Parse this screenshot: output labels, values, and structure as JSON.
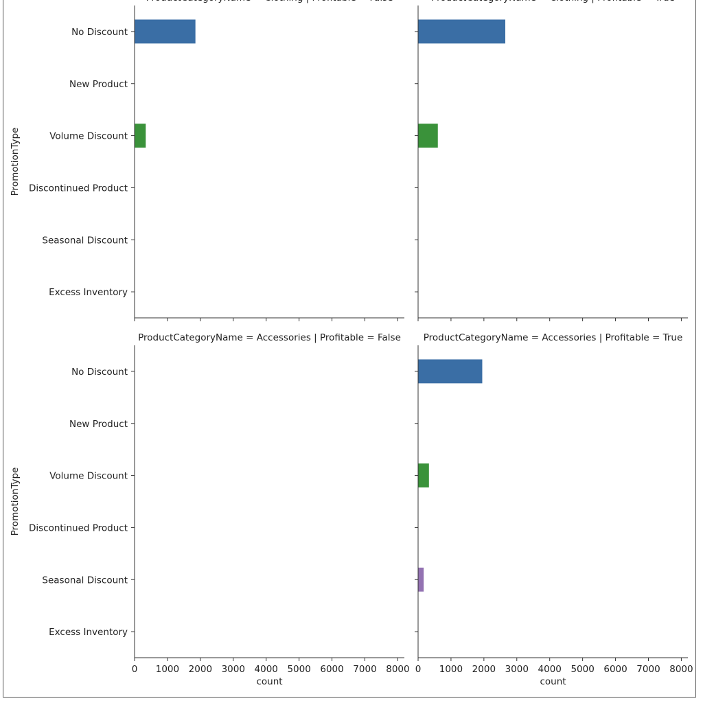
{
  "chart_data": {
    "type": "bar",
    "orientation": "horizontal",
    "ylabel": "PromotionType",
    "xlabel": "count",
    "categories": [
      "No Discount",
      "New Product",
      "Volume Discount",
      "Discontinued Product",
      "Seasonal Discount",
      "Excess Inventory"
    ],
    "xlim": [
      0,
      8200
    ],
    "x_ticks": [
      0,
      1000,
      2000,
      3000,
      4000,
      5000,
      6000,
      7000,
      8000
    ],
    "x_tick_labels": [
      "0",
      "1000",
      "2000",
      "3000",
      "4000",
      "5000",
      "6000",
      "7000",
      "8000"
    ],
    "colors": [
      "#3a6ea5",
      "#e1812c",
      "#3a923a",
      "#c03d3e",
      "#9372b2",
      "#845b53"
    ],
    "grid": false,
    "panels": [
      {
        "title": "ProductCategoryName = Clothing | Profitable = False",
        "values": [
          1850,
          0,
          340,
          0,
          0,
          0
        ]
      },
      {
        "title": "ProductCategoryName = Clothing | Profitable = True",
        "values": [
          2650,
          0,
          600,
          0,
          0,
          0
        ]
      },
      {
        "title": "ProductCategoryName = Accessories | Profitable = False",
        "values": [
          0,
          0,
          0,
          0,
          0,
          0
        ]
      },
      {
        "title": "ProductCategoryName = Accessories | Profitable = True",
        "values": [
          1950,
          0,
          330,
          0,
          170,
          0
        ]
      }
    ]
  }
}
